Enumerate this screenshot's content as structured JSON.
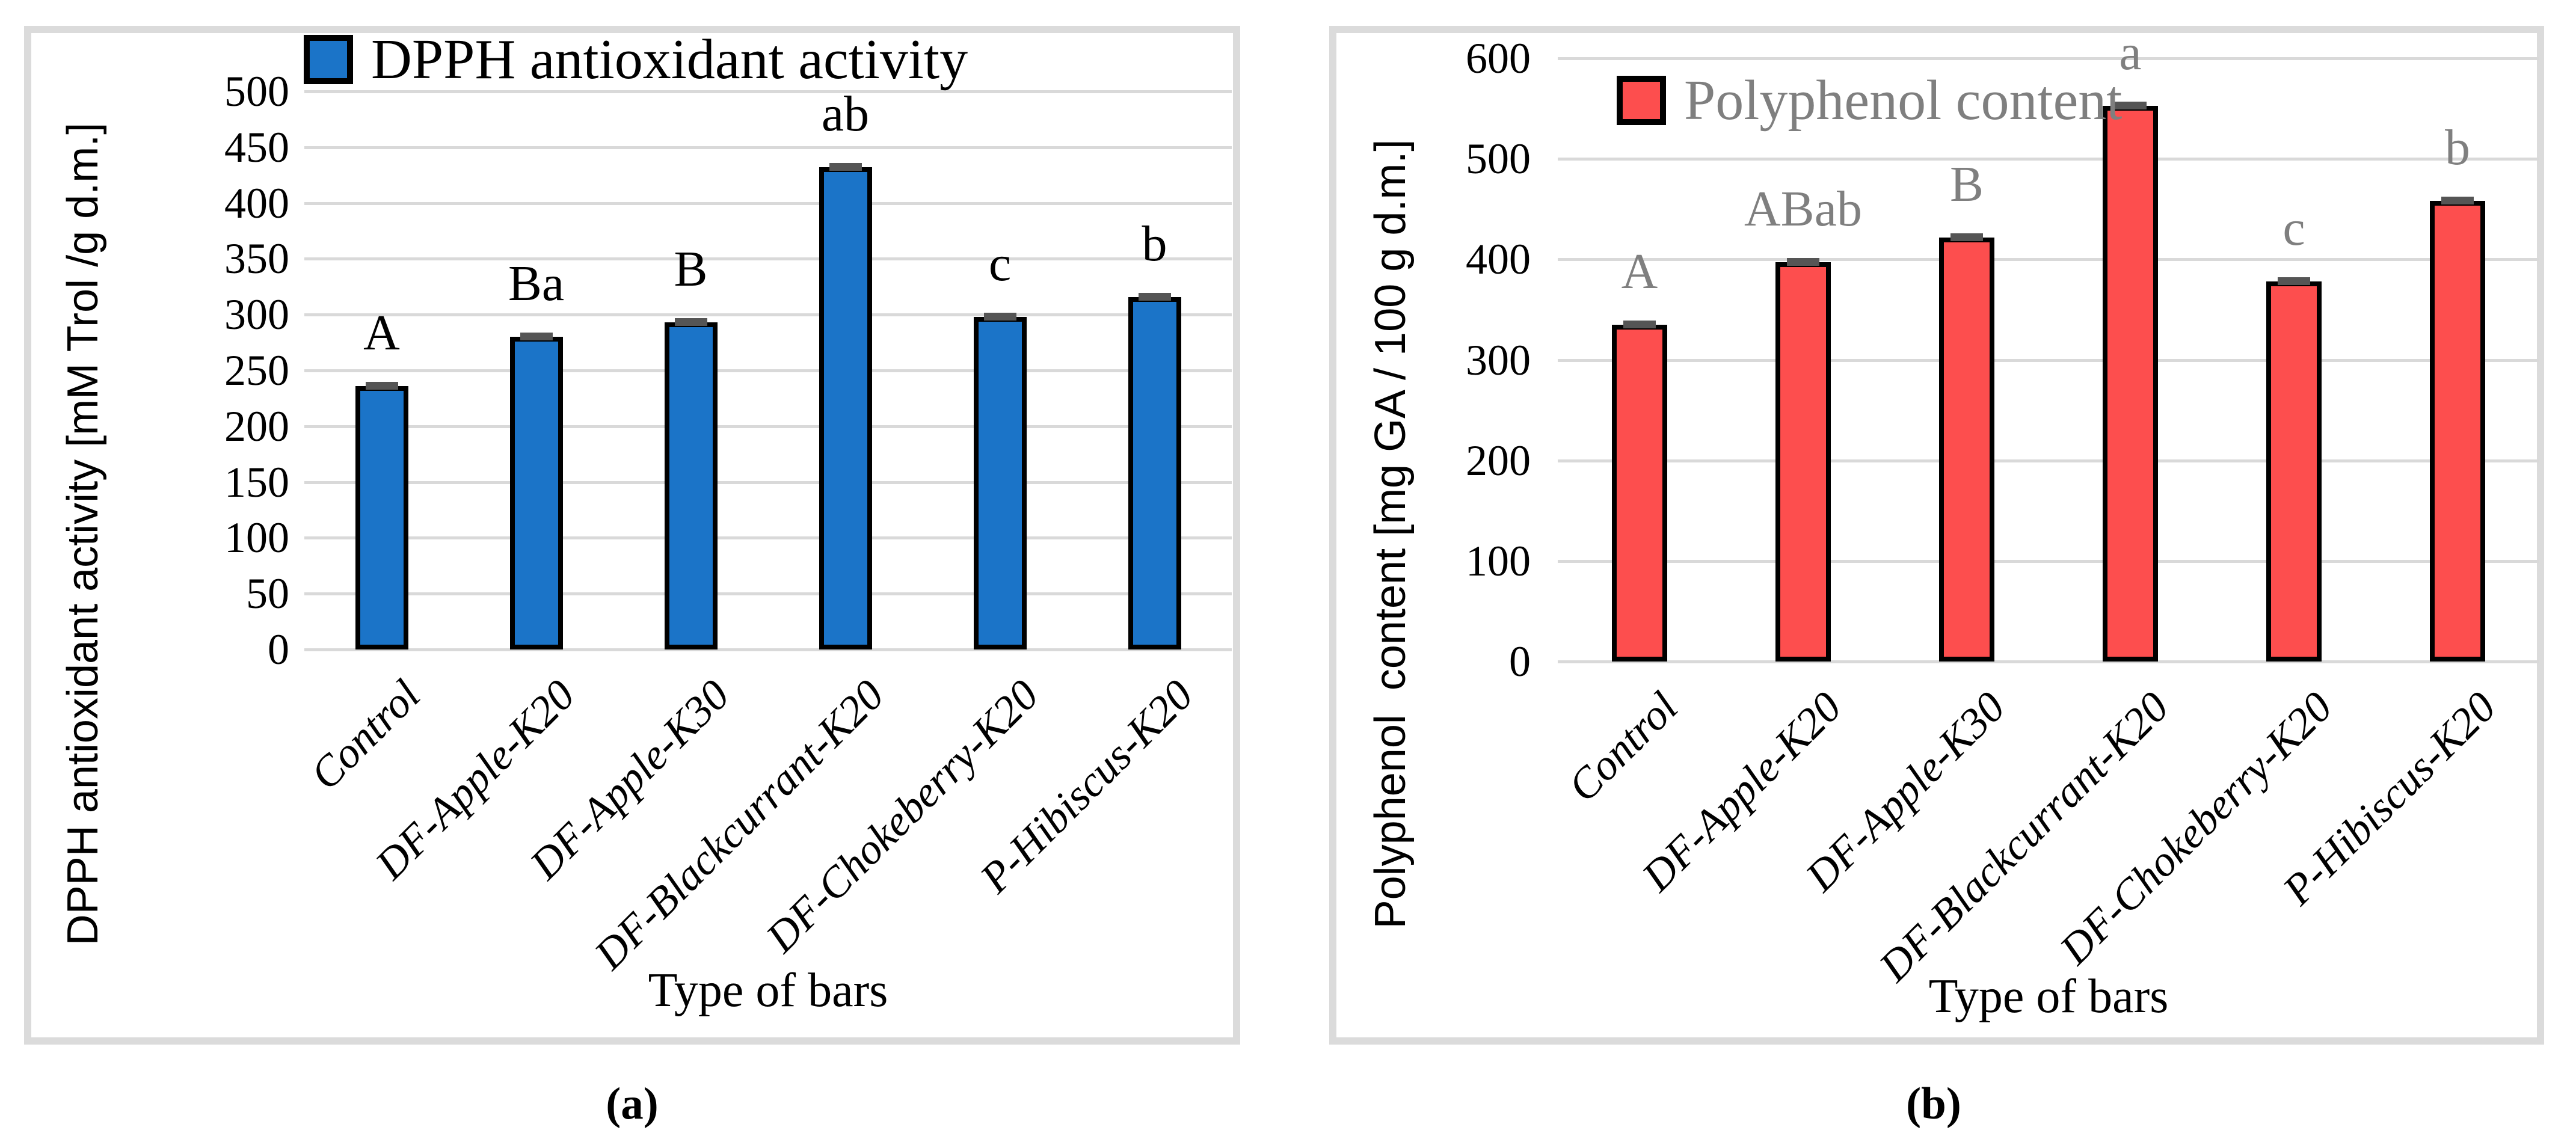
{
  "figure": {
    "captions": [
      "(a)",
      "(b)"
    ],
    "background_color": "#ffffff",
    "panel_border_color": "#dbdbdb",
    "gridline_color": "#d9d9d9",
    "error_cap_color": "#555555"
  },
  "chart_data": [
    {
      "type": "bar",
      "legend": "DPPH antioxidant activity",
      "legend_position": "top",
      "legend_text_color": "#000000",
      "ylabel": "DPPH antioxidant activity [mM Trol /g d.m.]",
      "xlabel": "Type of bars",
      "categories": [
        "Control",
        "DF-Apple-K20",
        "DF-Apple-K30",
        "DF-Blackcurrant-K20",
        "DF-Chokeberry-K20",
        "P-Hibiscus-K20"
      ],
      "values": [
        236,
        280,
        293,
        432,
        298,
        316
      ],
      "significance_letters": [
        "A",
        "Ba",
        "B",
        "ab",
        "c",
        "b"
      ],
      "letter_color": "#000000",
      "bar_color": "#1b74c8",
      "bar_border_color": "#000000",
      "ylim": [
        0,
        500
      ],
      "ytick_step": 50,
      "yticks": [
        500,
        450,
        400,
        350,
        300,
        250,
        200,
        150,
        100,
        50,
        0
      ],
      "grid": true,
      "error_caps_shown": true
    },
    {
      "type": "bar",
      "legend": "Polyphenol content",
      "legend_position": "top",
      "legend_text_color": "#7f7f7f",
      "ylabel": "Polyphenol  content [mg GA / 100 g d.m.]",
      "xlabel": "Type of bars",
      "categories": [
        "Control",
        "DF-Apple-K20",
        "DF-Apple-K30",
        "DF-Blackcurrant-K20",
        "DF-Chokeberry-K20",
        "P-Hibiscus-K20"
      ],
      "values": [
        335,
        397,
        422,
        553,
        378,
        458
      ],
      "significance_letters": [
        "A",
        "ABab",
        "B",
        "a",
        "c",
        "b"
      ],
      "letter_color": "#7f7f7f",
      "bar_color": "#fd4e4e",
      "bar_border_color": "#000000",
      "ylim": [
        0,
        600
      ],
      "ytick_step": 100,
      "yticks": [
        600,
        500,
        400,
        300,
        200,
        100,
        0
      ],
      "grid": true,
      "error_caps_shown": true
    }
  ]
}
